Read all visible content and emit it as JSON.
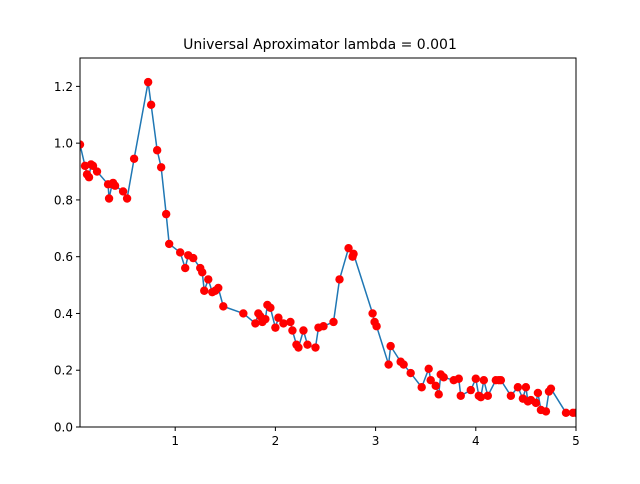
{
  "chart_data": {
    "type": "line",
    "title": "Universal Aproximator lambda = 0.001",
    "xlabel": "",
    "ylabel": "",
    "xlim": [
      0.05,
      5.0
    ],
    "ylim": [
      0.0,
      1.3
    ],
    "xticks": [
      1,
      2,
      3,
      4,
      5
    ],
    "xtick_labels": [
      "1",
      "2",
      "3",
      "4",
      "5"
    ],
    "yticks": [
      0.0,
      0.2,
      0.4,
      0.6,
      0.8,
      1.0,
      1.2
    ],
    "ytick_labels": [
      "0.0",
      "0.2",
      "0.4",
      "0.6",
      "0.8",
      "1.0",
      "1.2"
    ],
    "grid": false,
    "series": [
      {
        "line_color": "#1f77b4",
        "marker_color": "#ff0000",
        "marker": "circle",
        "x": [
          0.05,
          0.1,
          0.12,
          0.14,
          0.16,
          0.18,
          0.22,
          0.33,
          0.34,
          0.37,
          0.38,
          0.4,
          0.48,
          0.52,
          0.59,
          0.73,
          0.76,
          0.82,
          0.86,
          0.91,
          0.94,
          1.05,
          1.1,
          1.13,
          1.18,
          1.25,
          1.27,
          1.29,
          1.33,
          1.37,
          1.4,
          1.43,
          1.48,
          1.68,
          1.8,
          1.83,
          1.85,
          1.87,
          1.9,
          1.92,
          1.95,
          2.0,
          2.03,
          2.08,
          2.15,
          2.17,
          2.21,
          2.23,
          2.28,
          2.32,
          2.4,
          2.43,
          2.48,
          2.58,
          2.64,
          2.73,
          2.77,
          2.78,
          2.97,
          2.99,
          3.01,
          3.13,
          3.15,
          3.25,
          3.28,
          3.35,
          3.46,
          3.53,
          3.55,
          3.6,
          3.63,
          3.65,
          3.68,
          3.78,
          3.83,
          3.85,
          3.95,
          4.0,
          4.03,
          4.05,
          4.08,
          4.12,
          4.2,
          4.23,
          4.25,
          4.35,
          4.42,
          4.47,
          4.5,
          4.52,
          4.55,
          4.6,
          4.62,
          4.65,
          4.7,
          4.73,
          4.75,
          4.9,
          4.97,
          5.0
        ],
        "y": [
          0.995,
          0.92,
          0.89,
          0.88,
          0.925,
          0.92,
          0.9,
          0.855,
          0.805,
          0.855,
          0.86,
          0.85,
          0.83,
          0.805,
          0.945,
          1.215,
          1.135,
          0.975,
          0.915,
          0.75,
          0.645,
          0.615,
          0.56,
          0.605,
          0.595,
          0.56,
          0.545,
          0.48,
          0.52,
          0.475,
          0.48,
          0.49,
          0.425,
          0.4,
          0.365,
          0.4,
          0.39,
          0.37,
          0.38,
          0.43,
          0.42,
          0.35,
          0.385,
          0.365,
          0.37,
          0.34,
          0.29,
          0.28,
          0.34,
          0.29,
          0.28,
          0.35,
          0.355,
          0.37,
          0.52,
          0.63,
          0.6,
          0.61,
          0.4,
          0.37,
          0.355,
          0.22,
          0.285,
          0.23,
          0.22,
          0.19,
          0.14,
          0.205,
          0.165,
          0.145,
          0.115,
          0.185,
          0.175,
          0.165,
          0.17,
          0.11,
          0.13,
          0.17,
          0.11,
          0.105,
          0.165,
          0.11,
          0.165,
          0.165,
          0.165,
          0.11,
          0.14,
          0.1,
          0.14,
          0.09,
          0.095,
          0.085,
          0.12,
          0.06,
          0.055,
          0.125,
          0.135,
          0.05,
          0.05,
          0.05
        ]
      }
    ]
  }
}
